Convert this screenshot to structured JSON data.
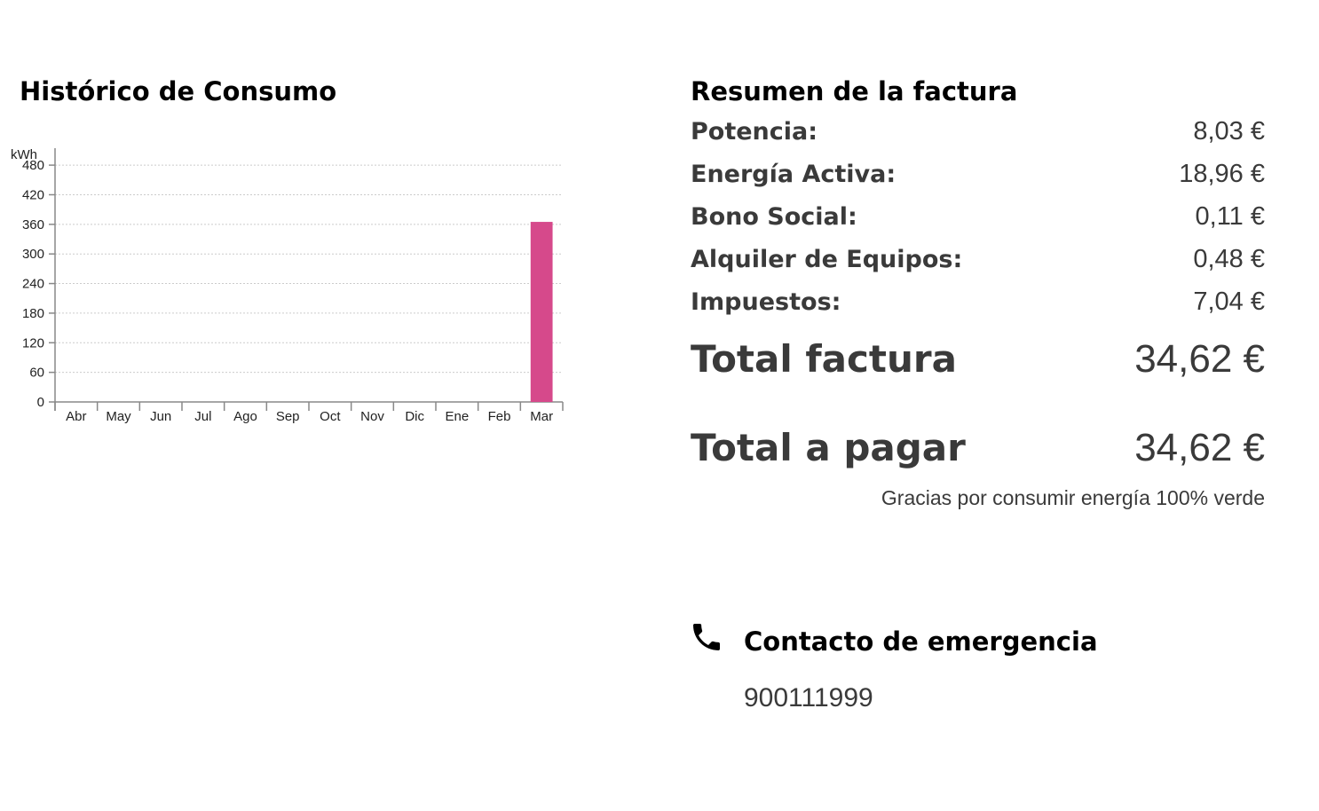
{
  "historico": {
    "title": "Histórico de Consumo"
  },
  "chart_data": {
    "type": "bar",
    "ylabel": "kWh",
    "categories": [
      "Abr",
      "May",
      "Jun",
      "Jul",
      "Ago",
      "Sep",
      "Oct",
      "Nov",
      "Dic",
      "Ene",
      "Feb",
      "Mar"
    ],
    "values": [
      0,
      0,
      0,
      0,
      0,
      0,
      0,
      0,
      0,
      0,
      0,
      365
    ],
    "yticks": [
      0,
      60,
      120,
      180,
      240,
      300,
      360,
      420,
      480
    ],
    "ylim": [
      0,
      500
    ],
    "grid": true,
    "bar_color": "#d6498b"
  },
  "resumen": {
    "title": "Resumen de la factura",
    "rows": [
      {
        "label": "Potencia:",
        "value": "8,03 €"
      },
      {
        "label": "Energía Activa:",
        "value": "18,96 €"
      },
      {
        "label": "Bono Social:",
        "value": "0,11 €"
      },
      {
        "label": "Alquiler de Equipos:",
        "value": "0,48 €"
      },
      {
        "label": "Impuestos:",
        "value": "7,04 €"
      }
    ],
    "total_factura": {
      "label": "Total factura",
      "value": "34,62 €"
    },
    "total_pagar": {
      "label": "Total a pagar",
      "value": "34,62 €"
    },
    "gracias": "Gracias por consumir energía 100% verde"
  },
  "contacto": {
    "icon": "phone-icon",
    "title": "Contacto de emergencia",
    "phone": "900111999"
  }
}
